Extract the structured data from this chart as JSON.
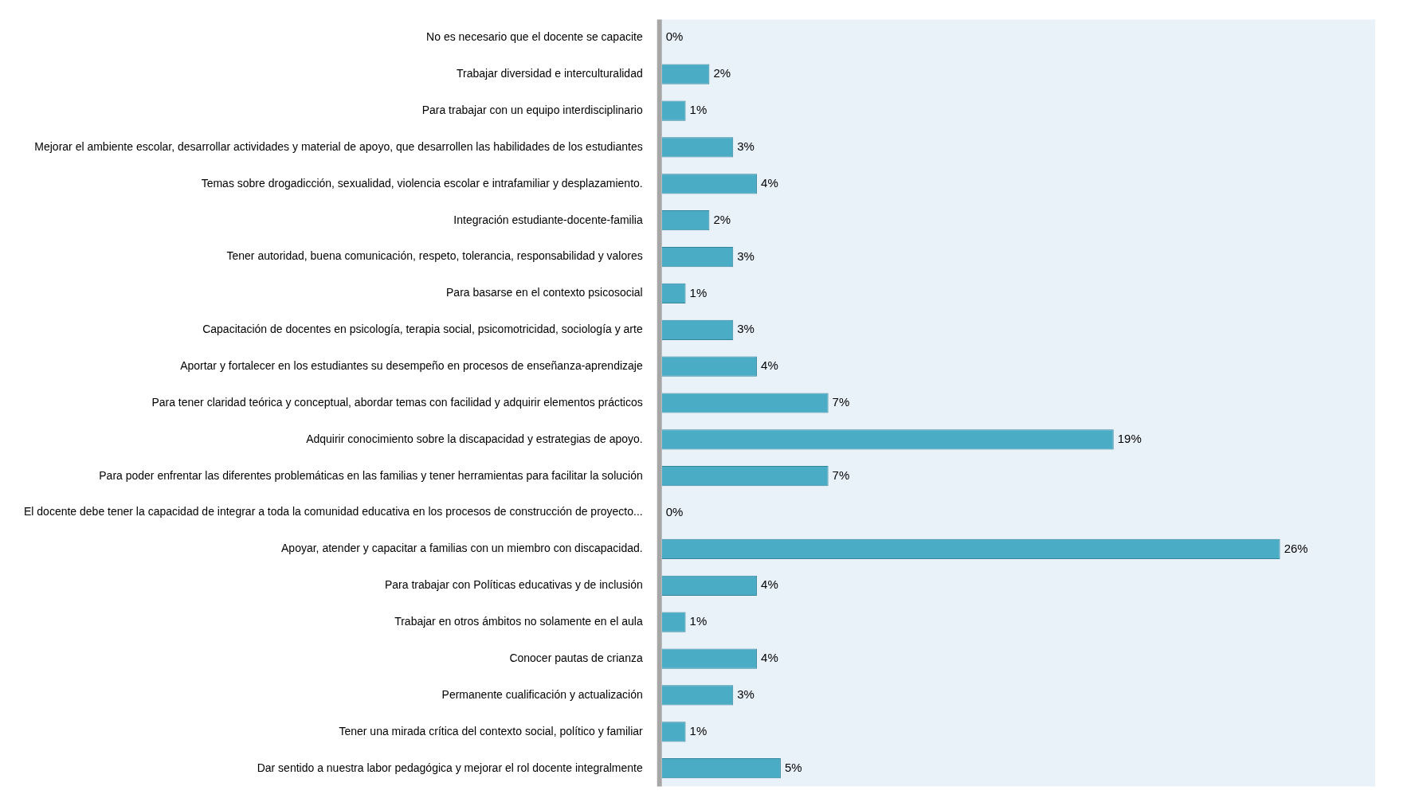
{
  "chart_data": {
    "type": "bar",
    "orientation": "horizontal",
    "categories": [
      "No es necesario que el docente se capacite",
      "Trabajar diversidad e interculturalidad",
      "Para trabajar con un equipo interdisciplinario",
      "Mejorar el ambiente escolar, desarrollar actividades y material de apoyo, que desarrollen las habilidades de los estudiantes",
      "Temas sobre drogadicción, sexualidad, violencia escolar e intrafamiliar y desplazamiento.",
      "Integración estudiante-docente-familia",
      "Tener autoridad, buena comunicación, respeto, tolerancia, responsabilidad y valores",
      "Para basarse en el contexto psicosocial",
      "Capacitación de docentes en psicología, terapia social, psicomotricidad, sociología y arte",
      "Aportar y fortalecer en los estudiantes su desempeño en procesos de enseñanza-aprendizaje",
      "Para tener claridad teórica y conceptual, abordar temas con facilidad y adquirir elementos prácticos",
      "Adquirir conocimiento sobre la discapacidad y estrategias de apoyo.",
      "Para poder enfrentar las diferentes problemáticas en las familias y tener herramientas para facilitar la solución",
      "El docente debe tener la capacidad de integrar a toda la comunidad educativa en los procesos de construcción de proyecto...",
      "Apoyar, atender y capacitar a familias con un miembro con discapacidad.",
      "Para trabajar con Políticas educativas y de inclusión",
      "Trabajar en otros ámbitos no solamente en el aula",
      "Conocer pautas de crianza",
      "Permanente cualificación y actualización",
      "Tener una mirada crítica del contexto social, político y familiar",
      "Dar sentido a nuestra labor pedagógica y mejorar el rol docente integralmente"
    ],
    "values": [
      0,
      2,
      1,
      3,
      4,
      2,
      3,
      1,
      3,
      4,
      7,
      19,
      7,
      0,
      26,
      4,
      1,
      4,
      3,
      1,
      5
    ],
    "value_labels": [
      "0%",
      "2%",
      "1%",
      "3%",
      "4%",
      "2%",
      "3%",
      "1%",
      "3%",
      "4%",
      "7%",
      "19%",
      "7%",
      "0%",
      "26%",
      "4%",
      "1%",
      "4%",
      "3%",
      "1%",
      "5%"
    ],
    "color": "#4aacc5",
    "tick_labels": "y",
    "grid": false,
    "legend": false
  }
}
